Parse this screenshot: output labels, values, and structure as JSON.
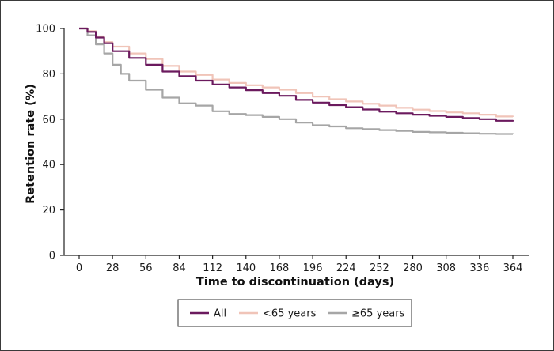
{
  "chart_data": {
    "type": "line",
    "title": "",
    "xlabel": "Time to discontinuation (days)",
    "ylabel": "Retention rate (%)",
    "xlim": [
      0,
      364
    ],
    "ylim": [
      0,
      100
    ],
    "x_ticks": [
      0,
      28,
      56,
      84,
      112,
      140,
      168,
      196,
      224,
      252,
      280,
      308,
      336,
      364
    ],
    "y_ticks": [
      0,
      20,
      40,
      60,
      80,
      100
    ],
    "grid": false,
    "legend_position": "bottom-center",
    "series": [
      {
        "name": "All",
        "color": "#6b1a5e",
        "x": [
          0,
          7,
          14,
          21,
          28,
          42,
          56,
          70,
          84,
          98,
          112,
          126,
          140,
          154,
          168,
          182,
          196,
          210,
          224,
          238,
          252,
          266,
          280,
          294,
          308,
          322,
          336,
          350,
          364
        ],
        "y": [
          100,
          98.5,
          96,
          93.5,
          90,
          87,
          84,
          81,
          79,
          77,
          75.3,
          74,
          72.8,
          71.5,
          70.3,
          68.5,
          67.3,
          66.2,
          65.3,
          64.3,
          63.3,
          62.6,
          62,
          61.5,
          61,
          60.5,
          60,
          59.3,
          59
        ]
      },
      {
        "name": "<65 years",
        "color": "#f0c4b8",
        "x": [
          0,
          7,
          14,
          21,
          28,
          42,
          56,
          70,
          84,
          98,
          112,
          126,
          140,
          154,
          168,
          182,
          196,
          210,
          224,
          238,
          252,
          266,
          280,
          294,
          308,
          322,
          336,
          350,
          364
        ],
        "y": [
          100,
          98.8,
          96.5,
          94,
          92,
          89,
          86.5,
          83.5,
          81,
          79.5,
          77.5,
          76,
          75,
          74,
          73,
          71.5,
          70,
          68.8,
          67.8,
          66.8,
          66,
          65,
          64.2,
          63.6,
          63,
          62.6,
          62,
          61.2,
          61
        ]
      },
      {
        "name": "≥65 years",
        "color": "#a6a6a6",
        "x": [
          0,
          7,
          14,
          21,
          28,
          35,
          42,
          56,
          70,
          84,
          98,
          112,
          126,
          140,
          154,
          168,
          182,
          196,
          210,
          224,
          238,
          252,
          266,
          280,
          294,
          308,
          322,
          336,
          350,
          364
        ],
        "y": [
          100,
          97,
          93,
          89,
          84,
          80,
          77,
          73,
          69.5,
          67,
          66,
          63.5,
          62.3,
          61.8,
          61,
          60,
          58.5,
          57.3,
          56.8,
          56,
          55.6,
          55.2,
          54.8,
          54.4,
          54.2,
          54,
          53.8,
          53.6,
          53.5,
          53.3
        ]
      }
    ]
  }
}
